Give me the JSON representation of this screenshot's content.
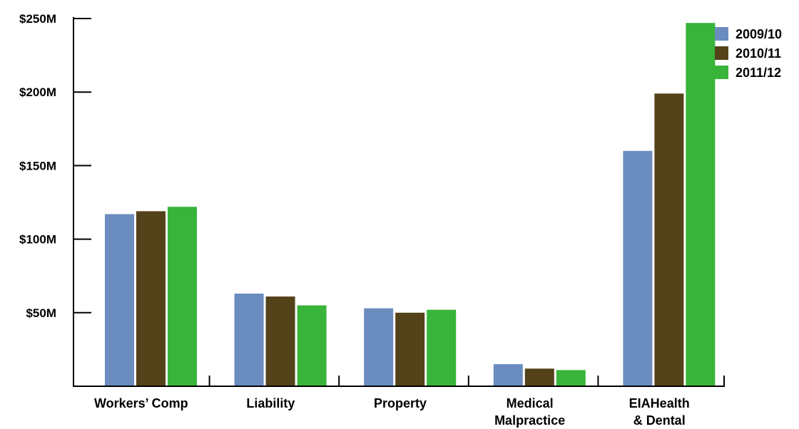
{
  "chart_data": {
    "type": "bar",
    "categories": [
      [
        "Workers’ Comp"
      ],
      [
        "Liability"
      ],
      [
        "Property"
      ],
      [
        "Medical",
        "Malpractice"
      ],
      [
        "EIAHealth",
        "& Dental"
      ]
    ],
    "series": [
      {
        "name": "2009/10",
        "color": "#6a8cbf",
        "values": [
          117,
          63,
          53,
          15,
          160
        ]
      },
      {
        "name": "2010/11",
        "color": "#54421a",
        "values": [
          119,
          61,
          50,
          12,
          199
        ]
      },
      {
        "name": "2011/12",
        "color": "#38b43a",
        "values": [
          122,
          55,
          52,
          11,
          247
        ]
      }
    ],
    "y_ticks": [
      {
        "value": 50,
        "label": "$50M"
      },
      {
        "value": 100,
        "label": "$100M"
      },
      {
        "value": 150,
        "label": "$150M"
      },
      {
        "value": 200,
        "label": "$200M"
      },
      {
        "value": 250,
        "label": "$250M"
      }
    ],
    "ylim": [
      0,
      250
    ],
    "legend_position": "top-right",
    "grid": false,
    "title": "",
    "xlabel": "",
    "ylabel": ""
  }
}
